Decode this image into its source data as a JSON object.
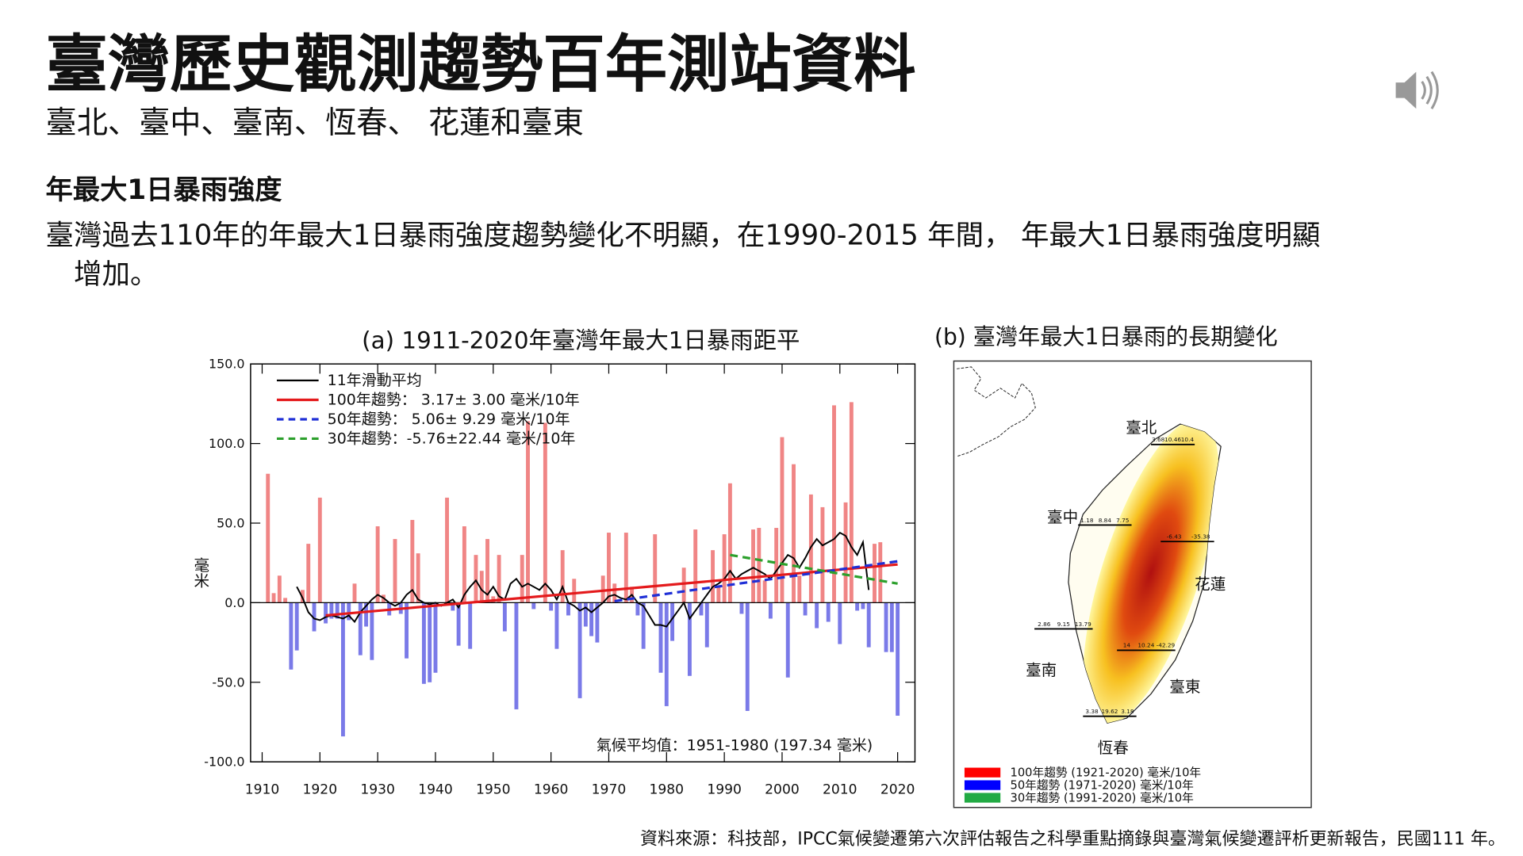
{
  "title": "臺灣歷史觀測趨勢百年測站資料",
  "subtitle": "臺北、臺中、臺南、恆春、 花蓮和臺東",
  "heading": "年最大1日暴雨強度",
  "paragraph": [
    "臺灣過去110年的年最大1日暴雨強度趨勢變化不明顯，在1990-2015 年間， 年最大1日暴雨強度明顯",
    "增加。"
  ],
  "source": "資料來源：科技部，IPCC氣候變遷第六次評估報告之科學重點摘錄與臺灣氣候變遷評析更新報告，民國111 年。",
  "chart_data": {
    "type": "bar",
    "title": "(a) 1911-2020年臺灣年最大1日暴雨距平",
    "ylabel": "毫米",
    "annotation": "氣候平均值：1951-1980 (197.34 毫米)",
    "x": [
      1911,
      1912,
      1913,
      1914,
      1915,
      1916,
      1917,
      1918,
      1919,
      1920,
      1921,
      1922,
      1923,
      1924,
      1925,
      1926,
      1927,
      1928,
      1929,
      1930,
      1931,
      1932,
      1933,
      1934,
      1935,
      1936,
      1937,
      1938,
      1939,
      1940,
      1941,
      1942,
      1943,
      1944,
      1945,
      1946,
      1947,
      1948,
      1949,
      1950,
      1951,
      1952,
      1953,
      1954,
      1955,
      1956,
      1957,
      1958,
      1959,
      1960,
      1961,
      1962,
      1963,
      1964,
      1965,
      1966,
      1967,
      1968,
      1969,
      1970,
      1971,
      1972,
      1973,
      1974,
      1975,
      1976,
      1977,
      1978,
      1979,
      1980,
      1981,
      1982,
      1983,
      1984,
      1985,
      1986,
      1987,
      1988,
      1989,
      1990,
      1991,
      1992,
      1993,
      1994,
      1995,
      1996,
      1997,
      1998,
      1999,
      2000,
      2001,
      2002,
      2003,
      2004,
      2005,
      2006,
      2007,
      2008,
      2009,
      2010,
      2011,
      2012,
      2013,
      2014,
      2015,
      2016,
      2017,
      2018,
      2019,
      2020
    ],
    "values": [
      81,
      6,
      17,
      3,
      -42,
      -30,
      8,
      37,
      -18,
      66,
      -13,
      -10,
      -10,
      -84,
      -11,
      12,
      -33,
      -15,
      -36,
      48,
      5,
      -8,
      40,
      -7,
      -35,
      52,
      31,
      -51,
      -50,
      -44,
      0,
      66,
      -5,
      -27,
      48,
      -29,
      30,
      20,
      40,
      4,
      30,
      -18,
      0,
      -67,
      30,
      114,
      -4,
      0,
      113,
      -5,
      -29,
      33,
      -8,
      15,
      -60,
      -15,
      -21,
      -25,
      17,
      44,
      12,
      0,
      44,
      10,
      -8,
      -29,
      0,
      43,
      -44,
      -65,
      -24,
      0,
      22,
      -46,
      46,
      -8,
      -28,
      33,
      10,
      43,
      75,
      0,
      -7,
      -68,
      46,
      47,
      14,
      -10,
      47,
      104,
      -47,
      87,
      17,
      -8,
      68,
      -16,
      60,
      -12,
      124,
      -26,
      63,
      126,
      -5,
      -4,
      -28,
      37,
      38,
      -31,
      -31,
      -71
    ],
    "positive_color": "#f08585",
    "negative_color": "#7a7ae8",
    "xlim": [
      1908,
      2023
    ],
    "ylim": [
      -100,
      150
    ],
    "xticks": [
      1910,
      1920,
      1930,
      1940,
      1950,
      1960,
      1970,
      1980,
      1990,
      2000,
      2010,
      2020
    ],
    "yticks": [
      {
        "value": 150,
        "label": "150.0"
      },
      {
        "value": 100,
        "label": "100.0"
      },
      {
        "value": 50,
        "label": "50.0"
      },
      {
        "value": 0,
        "label": "0.0"
      },
      {
        "value": -50,
        "label": "-50.0"
      },
      {
        "value": -100,
        "label": "-100.0"
      }
    ],
    "lines": [
      {
        "name": "11年滑動平均",
        "color": "#000000",
        "dashed": false,
        "x": [
          1916,
          1917,
          1918,
          1919,
          1920,
          1921,
          1922,
          1923,
          1924,
          1925,
          1926,
          1927,
          1928,
          1929,
          1930,
          1931,
          1932,
          1933,
          1934,
          1935,
          1936,
          1937,
          1938,
          1939,
          1940,
          1941,
          1942,
          1943,
          1944,
          1945,
          1946,
          1947,
          1948,
          1949,
          1950,
          1951,
          1952,
          1953,
          1954,
          1955,
          1956,
          1957,
          1958,
          1959,
          1960,
          1961,
          1962,
          1963,
          1964,
          1965,
          1966,
          1967,
          1968,
          1969,
          1970,
          1971,
          1972,
          1973,
          1974,
          1975,
          1976,
          1977,
          1978,
          1979,
          1980,
          1981,
          1982,
          1983,
          1984,
          1985,
          1986,
          1987,
          1988,
          1989,
          1990,
          1991,
          1992,
          1993,
          1994,
          1995,
          1996,
          1997,
          1998,
          1999,
          2000,
          2001,
          2002,
          2003,
          2004,
          2005,
          2006,
          2007,
          2008,
          2009,
          2010,
          2011,
          2012,
          2013,
          2014,
          2015
        ],
        "values": [
          10,
          3,
          -6,
          -10,
          -11,
          -9,
          -8,
          -9,
          -10,
          -8,
          -12,
          -6,
          -2,
          2,
          5,
          3,
          0,
          -2,
          0,
          5,
          8,
          2,
          0,
          -1,
          0,
          -2,
          0,
          2,
          -3,
          5,
          10,
          14,
          8,
          5,
          10,
          4,
          2,
          12,
          15,
          10,
          12,
          10,
          8,
          12,
          8,
          2,
          10,
          0,
          -2,
          -5,
          -3,
          -6,
          -3,
          0,
          4,
          5,
          3,
          2,
          5,
          0,
          -2,
          -8,
          -14,
          -14,
          -15,
          -10,
          -5,
          0,
          -10,
          -5,
          0,
          5,
          10,
          12,
          15,
          20,
          15,
          18,
          20,
          22,
          20,
          18,
          15,
          20,
          25,
          30,
          28,
          22,
          28,
          35,
          40,
          36,
          38,
          40,
          44,
          42,
          35,
          30,
          38,
          8
        ]
      },
      {
        "name": "100年趨勢： 3.17± 3.00 毫米/10年",
        "color": "#e41a1c",
        "dashed": false,
        "x": [
          1921,
          2020
        ],
        "values": [
          -8,
          24
        ]
      },
      {
        "name": "50年趨勢： 5.06± 9.29 毫米/10年",
        "color": "#1f2fd6",
        "dashed": true,
        "x": [
          1971,
          2020
        ],
        "values": [
          1,
          26
        ]
      },
      {
        "name": "30年趨勢：-5.76±22.44 毫米/10年",
        "color": "#2ca02c",
        "dashed": true,
        "x": [
          1991,
          2020
        ],
        "values": [
          30,
          12
        ]
      }
    ]
  },
  "map": {
    "title": "(b) 臺灣年最大1日暴雨的長期變化",
    "stations": [
      {
        "label": "臺北",
        "values": [
          "3.68",
          "10.46",
          "10.4"
        ]
      },
      {
        "label": "臺中",
        "values": [
          "1.18",
          "8.84",
          "7.75"
        ]
      },
      {
        "label": "花蓮",
        "values": [
          "-6.43",
          "-35.38"
        ]
      },
      {
        "label": "臺南",
        "values": [
          "2.86",
          "9.15",
          "13.79"
        ]
      },
      {
        "label": "臺東",
        "values": [
          "14",
          "10.24",
          "-42.29"
        ]
      },
      {
        "label": "恆春",
        "values": [
          "3.38",
          "19.62",
          "3.18"
        ]
      }
    ],
    "legend": [
      {
        "label": "100年趨勢 (1921-2020) 毫米/10年",
        "color": "#ff0000"
      },
      {
        "label": "50年趨勢 (1971-2020) 毫米/10年",
        "color": "#0000ff"
      },
      {
        "label": "30年趨勢 (1991-2020) 毫米/10年",
        "color": "#22aa44"
      }
    ]
  }
}
